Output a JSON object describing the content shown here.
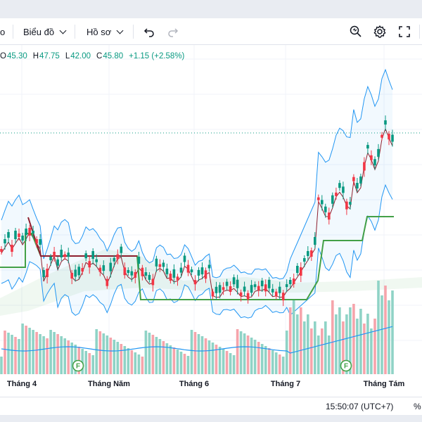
{
  "toolbar": {
    "interval_label": "o",
    "chart_type_label": "Biểu đồ",
    "profile_label": "Hồ sơ",
    "undo_icon": "undo-icon",
    "redo_icon": "redo-icon",
    "search_icon": "quick-search-icon",
    "settings_icon": "gear-icon",
    "fullscreen_icon": "fullscreen-icon"
  },
  "legend": {
    "open_key": "O",
    "open": "45.30",
    "high_key": "H",
    "high": "47.75",
    "low_key": "L",
    "low": "42.00",
    "close_key": "C",
    "close": "45.80",
    "change": "+1.15 (+2.58%)",
    "color_up": "#089981"
  },
  "chart_data": {
    "type": "candlestick",
    "x_labels": [
      "Tháng 4",
      "Tháng Năm",
      "Tháng 6",
      "Tháng 7",
      "Tháng Tám"
    ],
    "event_markers": [
      "F",
      "F"
    ],
    "colors": {
      "up": "#089981",
      "down": "#f23645",
      "bollinger": "#2196f3",
      "moving_average": "#8d1f2e",
      "trailing_line": "#43a047",
      "volume_up": "#8fd3c6",
      "volume_down": "#f6a4ab"
    },
    "grid": true
  },
  "status": {
    "time": "15:50:07 (UTC+7)",
    "percent_label": "%"
  }
}
